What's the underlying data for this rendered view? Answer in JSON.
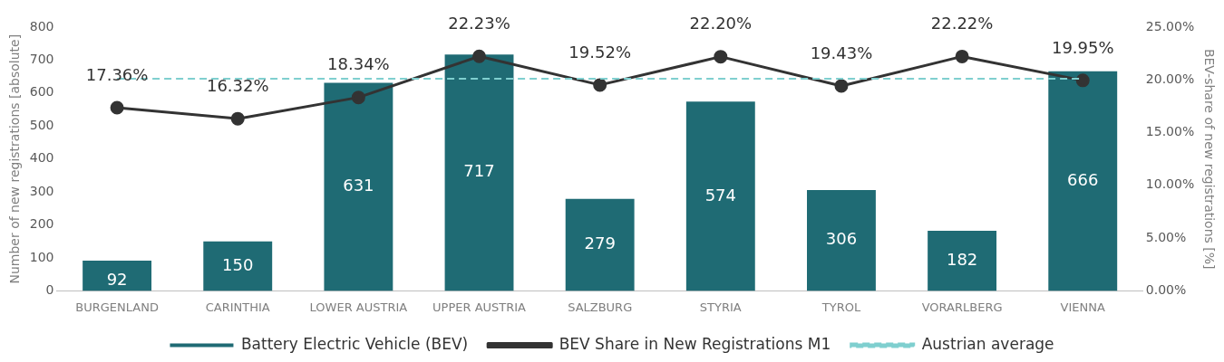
{
  "chart_data": {
    "type": "bar",
    "ylabel": "Number of new registrations [absolute]",
    "y2label": "BEV-share of new registrations [%]",
    "categories": [
      "BURGENLAND",
      "CARINTHIA",
      "LOWER AUSTRIA",
      "UPPER AUSTRIA",
      "SALZBURG",
      "STYRIA",
      "TYROL",
      "VORARLBERG",
      "VIENNA"
    ],
    "series": [
      {
        "name": "Battery Electric Vehicle (BEV)",
        "color": "#1f6b74",
        "values": [
          92,
          150,
          631,
          717,
          279,
          574,
          306,
          182,
          666
        ],
        "value_labels": [
          "92",
          "150",
          "631",
          "717",
          "279",
          "574",
          "306",
          "182",
          "666"
        ]
      },
      {
        "name": "BEV Share in New Registrations M1",
        "type": "line",
        "axis": "y2",
        "color": "#333333",
        "marker": "circle",
        "line_style": "solid",
        "values": [
          17.36,
          16.32,
          18.34,
          22.23,
          19.52,
          22.2,
          19.43,
          22.22,
          19.95
        ],
        "value_labels": [
          "17.36%",
          "16.32%",
          "18.34%",
          "22.23%",
          "19.52%",
          "22.20%",
          "19.43%",
          "22.22%",
          "19.95%"
        ]
      }
    ],
    "ref_lines": [
      {
        "axis": "y2",
        "value": 20.1,
        "label": "Austrian average",
        "color": "#7fcfcf",
        "line_style": "dashed"
      }
    ],
    "ylim": [
      0,
      800
    ],
    "yticks": [
      0,
      100,
      200,
      300,
      400,
      500,
      600,
      700,
      800
    ],
    "y2lim": [
      0,
      25
    ],
    "y2ticks": [
      {
        "value": 0,
        "label": "0.00%"
      },
      {
        "value": 5,
        "label": "5.00%"
      },
      {
        "value": 10,
        "label": "10.00%"
      },
      {
        "value": 15,
        "label": "15.00%"
      },
      {
        "value": 20,
        "label": "20.00%"
      },
      {
        "value": 25,
        "label": "25.00%"
      }
    ],
    "grid": false,
    "legend": "bottom"
  }
}
